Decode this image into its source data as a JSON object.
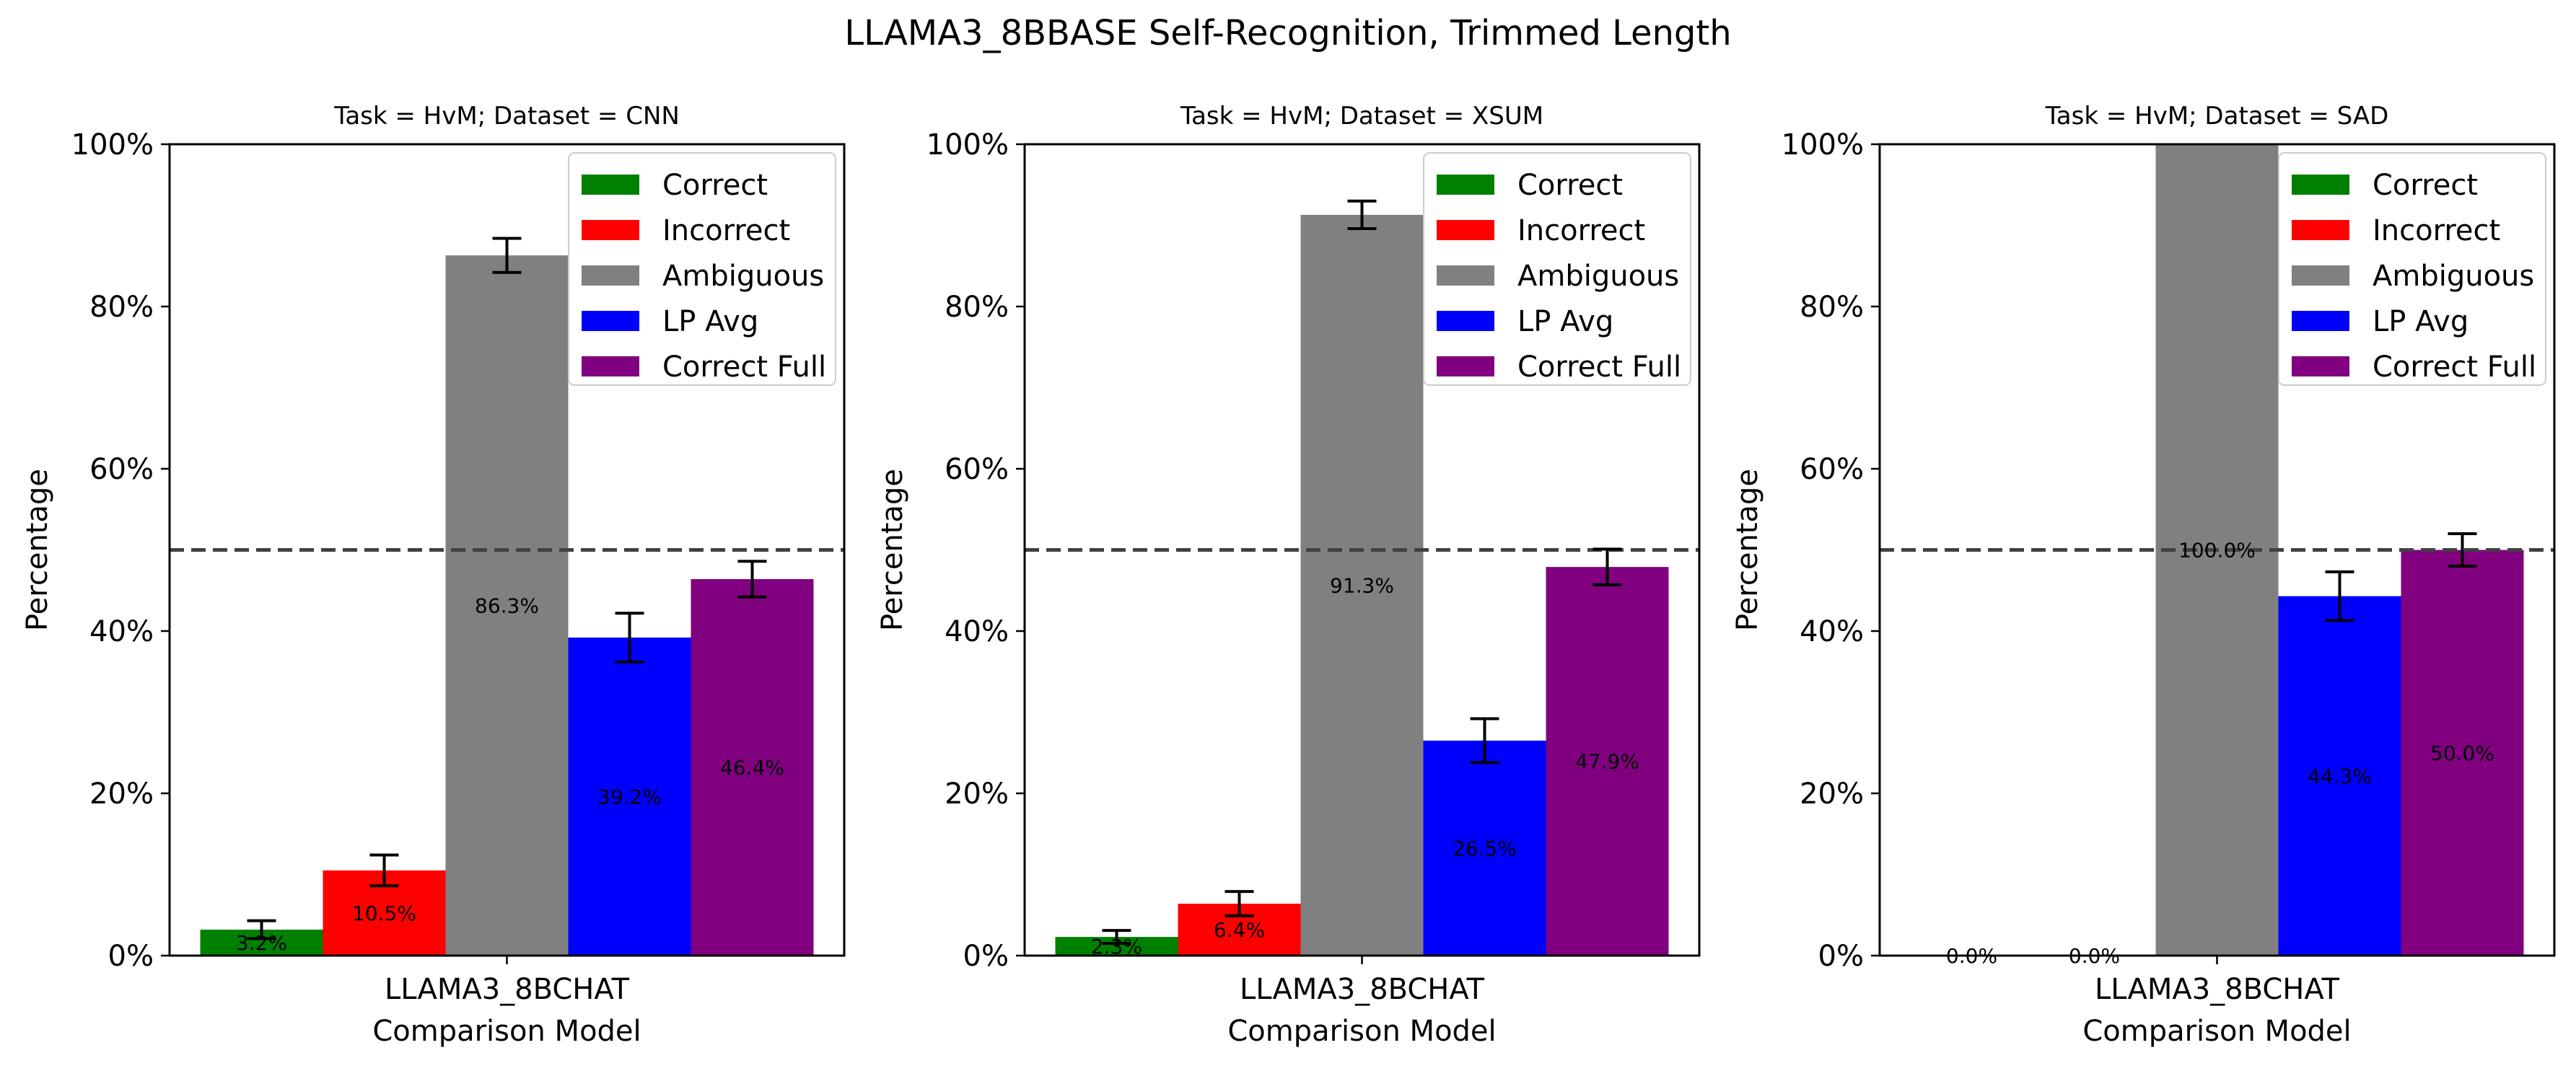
{
  "figure": {
    "title": "LLAMA3_8BBASE Self-Recognition, Trimmed Length"
  },
  "colors": {
    "Correct": "#008000",
    "Incorrect": "#ff0000",
    "Ambiguous": "#808080",
    "LP Avg": "#0000ff",
    "Correct Full": "#800080",
    "reference_line": "#404040"
  },
  "chart_data": [
    {
      "type": "bar",
      "title": "Task = HvM;  Dataset = CNN",
      "xlabel": "Comparison Model",
      "ylabel": "Percentage",
      "categories": [
        "LLAMA3_8BCHAT"
      ],
      "ylim": [
        0,
        100
      ],
      "yticks": [
        "0%",
        "20%",
        "40%",
        "60%",
        "80%",
        "100%"
      ],
      "reference_line": 50,
      "legend_position": "top-right",
      "series": [
        {
          "name": "Correct",
          "values": [
            3.2
          ],
          "error": [
            1.1
          ],
          "label": "3.2%"
        },
        {
          "name": "Incorrect",
          "values": [
            10.5
          ],
          "error": [
            1.9
          ],
          "label": "10.5%"
        },
        {
          "name": "Ambiguous",
          "values": [
            86.3
          ],
          "error": [
            2.1
          ],
          "label": "86.3%"
        },
        {
          "name": "LP Avg",
          "values": [
            39.2
          ],
          "error": [
            3.0
          ],
          "label": "39.2%"
        },
        {
          "name": "Correct Full",
          "values": [
            46.4
          ],
          "error": [
            2.2
          ],
          "label": "46.4%"
        }
      ]
    },
    {
      "type": "bar",
      "title": "Task = HvM;  Dataset = XSUM",
      "xlabel": "Comparison Model",
      "ylabel": "Percentage",
      "categories": [
        "LLAMA3_8BCHAT"
      ],
      "ylim": [
        0,
        100
      ],
      "yticks": [
        "0%",
        "20%",
        "40%",
        "60%",
        "80%",
        "100%"
      ],
      "reference_line": 50,
      "legend_position": "top-right",
      "series": [
        {
          "name": "Correct",
          "values": [
            2.3
          ],
          "error": [
            0.8
          ],
          "label": "2.3%"
        },
        {
          "name": "Incorrect",
          "values": [
            6.4
          ],
          "error": [
            1.5
          ],
          "label": "6.4%"
        },
        {
          "name": "Ambiguous",
          "values": [
            91.3
          ],
          "error": [
            1.7
          ],
          "label": "91.3%"
        },
        {
          "name": "LP Avg",
          "values": [
            26.5
          ],
          "error": [
            2.7
          ],
          "label": "26.5%"
        },
        {
          "name": "Correct Full",
          "values": [
            47.9
          ],
          "error": [
            2.2
          ],
          "label": "47.9%"
        }
      ]
    },
    {
      "type": "bar",
      "title": "Task = HvM;  Dataset = SAD",
      "xlabel": "Comparison Model",
      "ylabel": "Percentage",
      "categories": [
        "LLAMA3_8BCHAT"
      ],
      "ylim": [
        0,
        100
      ],
      "yticks": [
        "0%",
        "20%",
        "40%",
        "60%",
        "80%",
        "100%"
      ],
      "reference_line": 50,
      "legend_position": "top-right",
      "series": [
        {
          "name": "Correct",
          "values": [
            0.0
          ],
          "error": [
            0
          ],
          "label": "0.0%"
        },
        {
          "name": "Incorrect",
          "values": [
            0.0
          ],
          "error": [
            0
          ],
          "label": "0.0%"
        },
        {
          "name": "Ambiguous",
          "values": [
            100.0
          ],
          "error": [
            0
          ],
          "label": "100.0%"
        },
        {
          "name": "LP Avg",
          "values": [
            44.3
          ],
          "error": [
            3.0
          ],
          "label": "44.3%"
        },
        {
          "name": "Correct Full",
          "values": [
            50.0
          ],
          "error": [
            2.0
          ],
          "label": "50.0%"
        }
      ]
    }
  ]
}
